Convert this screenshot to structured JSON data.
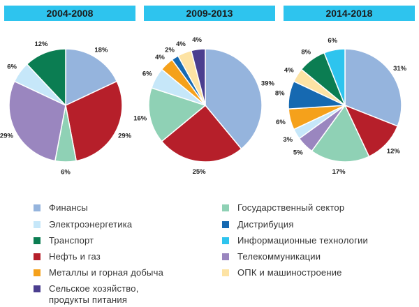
{
  "colors": {
    "finance": "#95b4dd",
    "electric": "#c6e7f9",
    "transport": "#0b7d52",
    "oilgas": "#b61f2a",
    "metals": "#f5a11b",
    "agri": "#4b3e8f",
    "government": "#8fd1b5",
    "distribution": "#1669b1",
    "it": "#2ec4ee",
    "telecom": "#9a86bf",
    "defense": "#fde3a4"
  },
  "legend": [
    {
      "key": "finance",
      "label": "Финансы"
    },
    {
      "key": "electric",
      "label": "Электроэнергетика"
    },
    {
      "key": "transport",
      "label": "Транспорт"
    },
    {
      "key": "oilgas",
      "label": "Нефть и газ"
    },
    {
      "key": "metals",
      "label": "Металлы и горная добыча"
    },
    {
      "key": "agri",
      "label": "Сельское хозяйство,\nпродукты питания"
    },
    {
      "key": "government",
      "label": "Государственный сектор"
    },
    {
      "key": "distribution",
      "label": "Дистрибуция"
    },
    {
      "key": "it",
      "label": "Информационные технологии"
    },
    {
      "key": "telecom",
      "label": "Телекоммуникации"
    },
    {
      "key": "defense",
      "label": "ОПК и машиностроение"
    }
  ],
  "chart_data": [
    {
      "type": "pie",
      "title": "2004-2008",
      "slices": [
        {
          "key": "finance",
          "value": 18,
          "label": "18%"
        },
        {
          "key": "oilgas",
          "value": 29,
          "label": "29%"
        },
        {
          "key": "government",
          "value": 6,
          "label": "6%"
        },
        {
          "key": "telecom",
          "value": 29,
          "label": "29%"
        },
        {
          "key": "electric",
          "value": 6,
          "label": "6%"
        },
        {
          "key": "transport",
          "value": 12,
          "label": "12%"
        }
      ]
    },
    {
      "type": "pie",
      "title": "2009-2013",
      "slices": [
        {
          "key": "finance",
          "value": 39,
          "label": "39%"
        },
        {
          "key": "oilgas",
          "value": 25,
          "label": "25%"
        },
        {
          "key": "government",
          "value": 16,
          "label": "16%"
        },
        {
          "key": "electric",
          "value": 6,
          "label": "6%"
        },
        {
          "key": "metals",
          "value": 4,
          "label": "4%"
        },
        {
          "key": "distribution",
          "value": 2,
          "label": "2%"
        },
        {
          "key": "defense",
          "value": 4,
          "label": "4%"
        },
        {
          "key": "agri",
          "value": 4,
          "label": "4%"
        }
      ]
    },
    {
      "type": "pie",
      "title": "2014-2018",
      "slices": [
        {
          "key": "finance",
          "value": 31,
          "label": "31%"
        },
        {
          "key": "oilgas",
          "value": 12,
          "label": "12%"
        },
        {
          "key": "government",
          "value": 17,
          "label": "17%"
        },
        {
          "key": "telecom",
          "value": 5,
          "label": "5%"
        },
        {
          "key": "electric",
          "value": 3,
          "label": "3%"
        },
        {
          "key": "metals",
          "value": 6,
          "label": "6%"
        },
        {
          "key": "distribution",
          "value": 8,
          "label": "8%"
        },
        {
          "key": "defense",
          "value": 4,
          "label": "4%"
        },
        {
          "key": "transport",
          "value": 8,
          "label": "8%"
        },
        {
          "key": "it",
          "value": 6,
          "label": "6%"
        }
      ]
    }
  ]
}
